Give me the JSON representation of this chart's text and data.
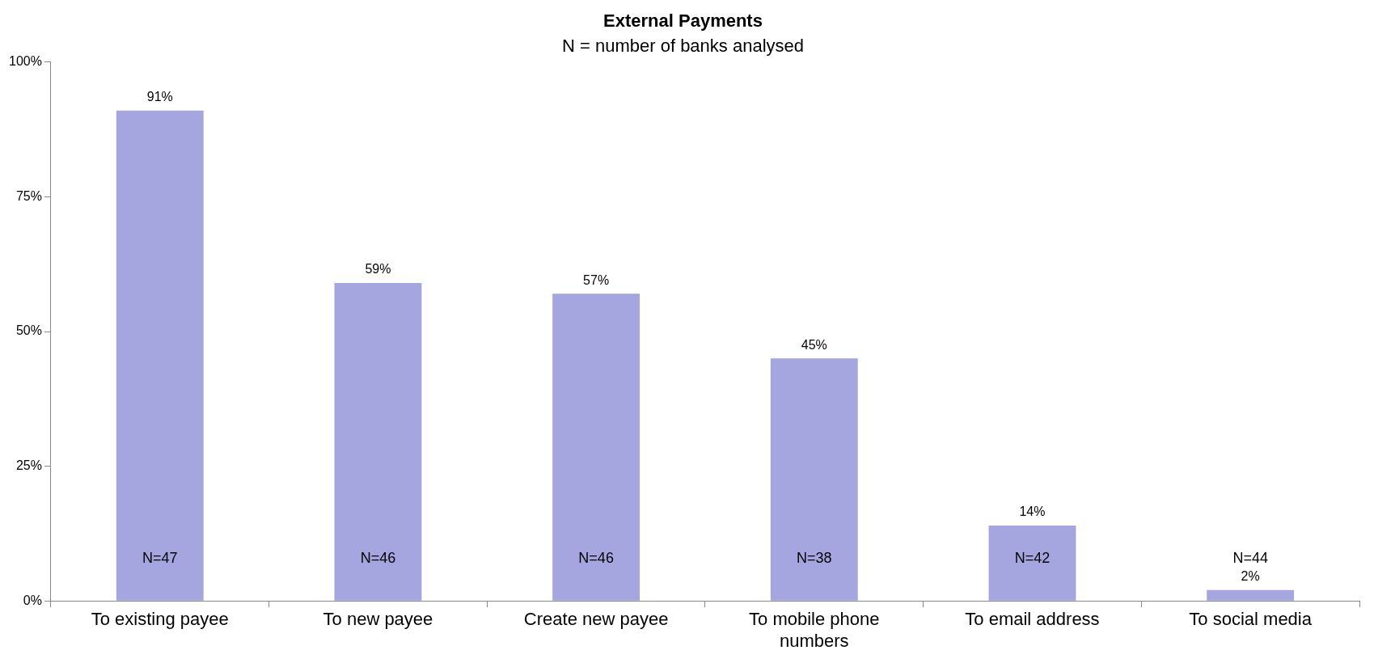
{
  "chart_data": {
    "type": "bar",
    "title": "External Payments",
    "subtitle": "N = number of banks analysed",
    "categories": [
      "To existing payee",
      "To new payee",
      "Create new payee",
      "To mobile phone numbers",
      "To email address",
      "To social media"
    ],
    "values": [
      91,
      59,
      57,
      45,
      14,
      2
    ],
    "value_labels": [
      "91%",
      "59%",
      "57%",
      "45%",
      "14%",
      "2%"
    ],
    "color": "#a5a5e0",
    "ylim": [
      0,
      100
    ],
    "yticks": [
      {
        "value": 0,
        "label": "0%"
      },
      {
        "value": 25,
        "label": "25%"
      },
      {
        "value": 50,
        "label": "50%"
      },
      {
        "value": 75,
        "label": "75%"
      },
      {
        "value": 100,
        "label": "100%"
      }
    ],
    "grid": false,
    "legend": false,
    "annotations": [
      "N=47",
      "N=46",
      "N=46",
      "N=38",
      "N=42",
      "N=44"
    ]
  }
}
